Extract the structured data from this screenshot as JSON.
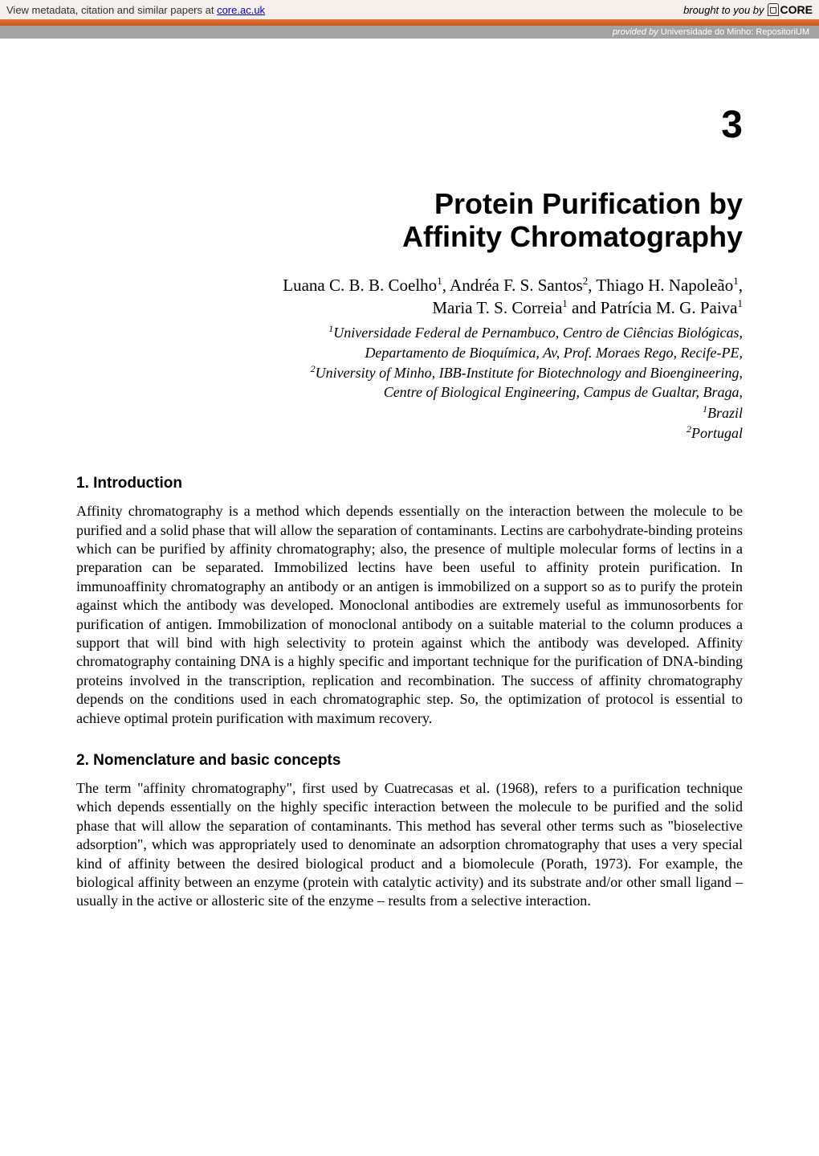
{
  "banner": {
    "left_prefix": "View metadata, citation and similar papers at ",
    "link_text": "core.ac.uk",
    "right_prefix": "brought to you by",
    "core_text": "CORE"
  },
  "provided_by": {
    "label": "provided by ",
    "source": "Universidade do Minho: RepositoriUM"
  },
  "chapter": {
    "number": "3",
    "title_line1": "Protein Purification by",
    "title_line2": "Affinity Chromatography"
  },
  "authors": {
    "line1_pre": "Luana C. B. B. Coelho",
    "line1_sup1": "1",
    "line1_mid": ", Andréa F. S. Santos",
    "line1_sup2": "2",
    "line1_post": ", Thiago H. Napoleão",
    "line1_sup3": "1",
    "line1_end": ",",
    "line2_pre": "Maria T. S. Correia",
    "line2_sup1": "1",
    "line2_mid": " and Patrícia M. G. Paiva",
    "line2_sup2": "1"
  },
  "affiliations": {
    "line1_sup": "1",
    "line1": "Universidade Federal de Pernambuco, Centro de Ciências Biológicas,",
    "line2": "Departamento de Bioquímica, Av, Prof. Moraes Rego, Recife-PE,",
    "line3_sup": "2",
    "line3": "University of Minho, IBB-Institute for Biotechnology and Bioengineering,",
    "line4": "Centre of Biological Engineering, Campus de Gualtar, Braga,",
    "line5_sup": "1",
    "line5": "Brazil",
    "line6_sup": "2",
    "line6": "Portugal"
  },
  "sections": {
    "intro": {
      "heading": "1. Introduction",
      "body": "Affinity chromatography is a method which depends essentially on the interaction between the molecule to be purified and a solid phase that will allow the separation of contaminants. Lectins are carbohydrate-binding proteins which can be purified by affinity chromatography; also, the presence of multiple molecular forms of lectins in a preparation can be separated. Immobilized lectins have been useful to affinity protein purification. In immunoaffinity chromatography an antibody or an antigen is immobilized on a support so as to purify the protein against which the antibody was developed. Monoclonal antibodies are extremely useful as immunosorbents for purification of antigen. Immobilization of monoclonal antibody on a suitable material to the column produces a support that will bind with high selectivity to protein against which the antibody was developed. Affinity chromatography containing DNA is a highly specific and important technique for the purification of DNA-binding proteins involved in the transcription, replication and recombination. The success of affinity chromatography depends on the conditions used in each chromatographic step. So, the optimization of protocol is essential to achieve optimal protein purification with maximum recovery."
    },
    "nomenclature": {
      "heading": "2. Nomenclature and basic concepts",
      "body": "The term \"affinity chromatography\", first used by Cuatrecasas et al. (1968), refers to a purification technique which depends essentially on the highly specific interaction between the molecule to be purified and the solid phase that will allow the separation of contaminants. This method has several other terms such as \"bioselective adsorption\", which was appropriately used to denominate an adsorption chromatography that uses a very special kind of affinity between the desired biological product and a biomolecule (Porath, 1973). For example, the biological affinity between an enzyme (protein with catalytic activity) and its substrate and/or other small ligand – usually in the active or allosteric site of the enzyme – results from a selective interaction."
    }
  },
  "colors": {
    "banner_bg": "#f5f0eb",
    "link_color": "#0000cc",
    "orange_bar_top": "#e07030",
    "orange_bar_bottom": "#c85a20",
    "provided_bg": "#a3a3a3",
    "text_color": "#000000",
    "page_bg": "#ffffff"
  },
  "typography": {
    "chapter_number_size": 48,
    "chapter_title_size": 36,
    "authors_size": 21,
    "affiliations_size": 18,
    "section_heading_size": 19,
    "body_size": 18,
    "banner_font_size": 13,
    "provided_font_size": 11
  }
}
